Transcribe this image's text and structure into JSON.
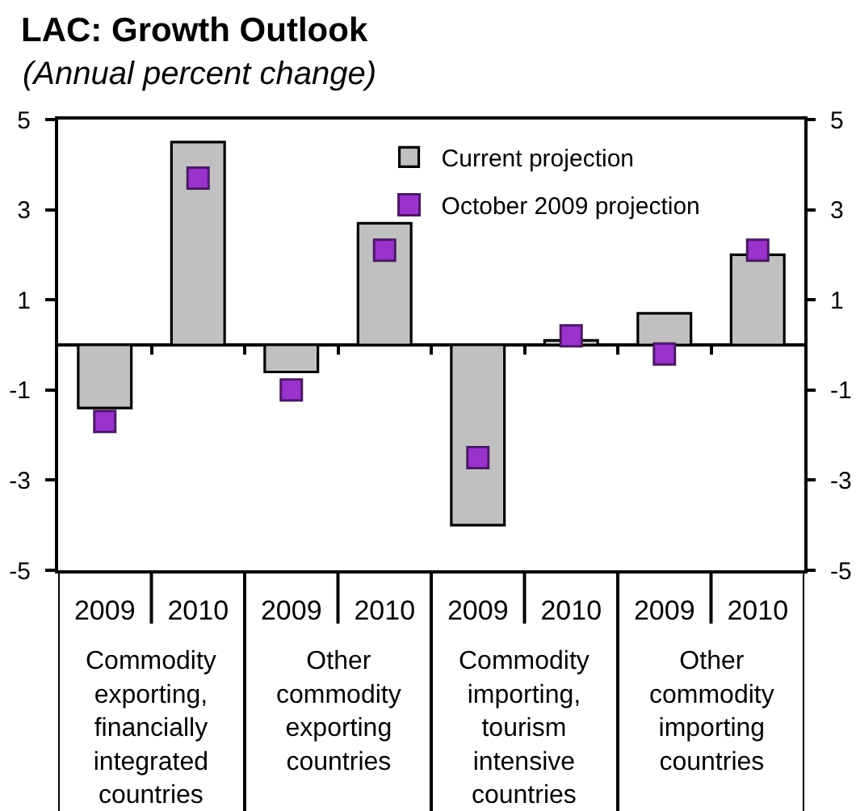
{
  "chart_data": {
    "type": "bar",
    "title": "LAC: Growth Outlook",
    "subtitle": "(Annual percent change)",
    "categories": [
      "2009",
      "2010",
      "2009",
      "2010",
      "2009",
      "2010",
      "2009",
      "2010"
    ],
    "annotations": [
      "Commodity exporting, financially integrated countries",
      "Other commodity exporting countries",
      "Commodity importing, tourism intensive countries",
      "Other commodity importing countries"
    ],
    "series": [
      {
        "name": "Current projection",
        "color": "#c0c0c0",
        "values": [
          -1.4,
          4.5,
          -0.6,
          2.7,
          -4.0,
          0.1,
          0.7,
          2.0
        ]
      },
      {
        "name": "October 2009 projection",
        "type": "scatter",
        "color": "#9933cc",
        "values": [
          -1.7,
          3.7,
          -1.0,
          2.1,
          -2.5,
          0.2,
          -0.2,
          2.1
        ]
      }
    ],
    "ylim": [
      -5,
      5
    ],
    "yticks": [
      -5,
      -3,
      -1,
      1,
      3,
      5
    ],
    "y2lim": [
      -5,
      5
    ],
    "y2ticks": [
      -5,
      -3,
      -1,
      1,
      3,
      5
    ],
    "grid": false,
    "legend": "top right",
    "marker": "square"
  }
}
